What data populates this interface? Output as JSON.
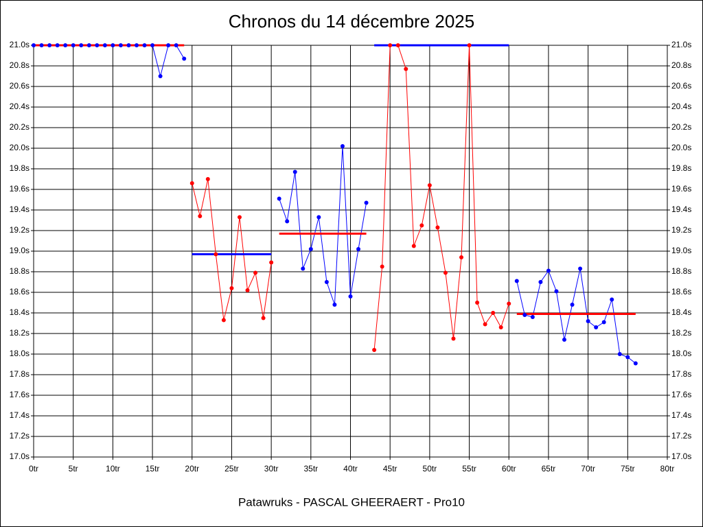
{
  "chart_data": {
    "type": "line",
    "title": "Chronos du 14 décembre 2025",
    "subtitle": "Patawruks - PASCAL GHEERAERT - Pro10",
    "xlim": [
      0,
      80
    ],
    "ylim": [
      17.0,
      21.0
    ],
    "grid": true,
    "xticks": [
      {
        "value": 0,
        "label": "0tr"
      },
      {
        "value": 5,
        "label": "5tr"
      },
      {
        "value": 10,
        "label": "10tr"
      },
      {
        "value": 15,
        "label": "15tr"
      },
      {
        "value": 20,
        "label": "20tr"
      },
      {
        "value": 25,
        "label": "25tr"
      },
      {
        "value": 30,
        "label": "30tr"
      },
      {
        "value": 35,
        "label": "35tr"
      },
      {
        "value": 40,
        "label": "40tr"
      },
      {
        "value": 45,
        "label": "45tr"
      },
      {
        "value": 50,
        "label": "50tr"
      },
      {
        "value": 55,
        "label": "55tr"
      },
      {
        "value": 60,
        "label": "60tr"
      },
      {
        "value": 65,
        "label": "65tr"
      },
      {
        "value": 70,
        "label": "70tr"
      },
      {
        "value": 75,
        "label": "75tr"
      },
      {
        "value": 80,
        "label": "80tr"
      }
    ],
    "yticks": [
      {
        "value": 17.0,
        "label": "17.0s"
      },
      {
        "value": 17.2,
        "label": "17.2s"
      },
      {
        "value": 17.4,
        "label": "17.4s"
      },
      {
        "value": 17.6,
        "label": "17.6s"
      },
      {
        "value": 17.8,
        "label": "17.8s"
      },
      {
        "value": 18.0,
        "label": "18.0s"
      },
      {
        "value": 18.2,
        "label": "18.2s"
      },
      {
        "value": 18.4,
        "label": "18.4s"
      },
      {
        "value": 18.6,
        "label": "18.6s"
      },
      {
        "value": 18.8,
        "label": "18.8s"
      },
      {
        "value": 19.0,
        "label": "19.0s"
      },
      {
        "value": 19.2,
        "label": "19.2s"
      },
      {
        "value": 19.4,
        "label": "19.4s"
      },
      {
        "value": 19.6,
        "label": "19.6s"
      },
      {
        "value": 19.8,
        "label": "19.8s"
      },
      {
        "value": 20.0,
        "label": "20.0s"
      },
      {
        "value": 20.2,
        "label": "20.2s"
      },
      {
        "value": 20.4,
        "label": "20.4s"
      },
      {
        "value": 20.6,
        "label": "20.6s"
      },
      {
        "value": 20.8,
        "label": "20.8s"
      },
      {
        "value": 21.0,
        "label": "21.0s"
      }
    ],
    "series": [
      {
        "color": "#0000ff",
        "average_color": "#ff0000",
        "average": 21.0,
        "x": [
          0,
          1,
          2,
          3,
          4,
          5,
          6,
          7,
          8,
          9,
          10,
          11,
          12,
          13,
          14,
          15,
          16,
          17,
          18,
          19
        ],
        "values": [
          21.0,
          21.0,
          21.0,
          21.0,
          21.0,
          21.0,
          21.0,
          21.0,
          21.0,
          21.0,
          21.0,
          21.0,
          21.0,
          21.0,
          21.0,
          21.0,
          20.7,
          21.0,
          21.0,
          20.87
        ]
      },
      {
        "color": "#ff0000",
        "average_color": "#0000ff",
        "average": 18.97,
        "x": [
          20,
          21,
          22,
          23,
          24,
          25,
          26,
          27,
          28,
          29,
          30
        ],
        "values": [
          19.66,
          19.34,
          19.7,
          18.97,
          18.33,
          18.64,
          19.33,
          18.62,
          18.79,
          18.35,
          18.89
        ]
      },
      {
        "color": "#0000ff",
        "average_color": "#ff0000",
        "average": 19.17,
        "x": [
          31,
          32,
          33,
          34,
          35,
          36,
          37,
          38,
          39,
          40,
          41,
          42
        ],
        "values": [
          19.51,
          19.29,
          19.77,
          18.83,
          19.02,
          19.33,
          18.7,
          18.48,
          20.02,
          18.56,
          19.02,
          19.47
        ]
      },
      {
        "color": "#ff0000",
        "average_color": "#0000ff",
        "average": 21.0,
        "x": [
          43,
          44,
          45,
          46,
          47,
          48,
          49,
          50,
          51,
          52,
          53,
          54,
          55,
          56,
          57,
          58,
          59,
          60
        ],
        "values": [
          18.04,
          18.85,
          21.0,
          21.0,
          20.77,
          19.05,
          19.25,
          19.64,
          19.23,
          18.79,
          18.15,
          18.94,
          21.0,
          18.5,
          18.29,
          18.4,
          18.26,
          18.49
        ]
      },
      {
        "color": "#0000ff",
        "average_color": "#ff0000",
        "average": 18.39,
        "x": [
          61,
          62,
          63,
          64,
          65,
          66,
          67,
          68,
          69,
          70,
          71,
          72,
          73,
          74,
          75,
          76
        ],
        "values": [
          18.71,
          18.38,
          18.36,
          18.7,
          18.81,
          18.61,
          18.14,
          18.48,
          18.83,
          18.32,
          18.26,
          18.31,
          18.53,
          18.0,
          17.97,
          17.91
        ]
      }
    ]
  }
}
